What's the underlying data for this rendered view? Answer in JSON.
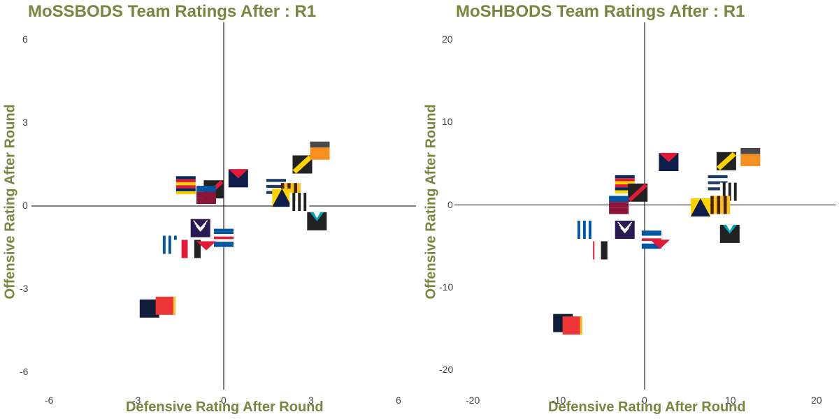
{
  "chart_data": [
    {
      "type": "scatter",
      "title": "MoSSBODS Team Ratings After : R1",
      "xlabel": "Defensive Rating After Round",
      "ylabel": "Offensive Rating After Round",
      "xlim": [
        -6,
        6
      ],
      "ylim": [
        -6,
        6
      ],
      "x_ticks": [
        "-6",
        "-3",
        "0",
        "3",
        "6"
      ],
      "y_ticks": [
        "6",
        "3",
        "0",
        "-3",
        "-6"
      ],
      "points": [
        {
          "team": "Adelaide",
          "x": -1.3,
          "y": 0.75
        },
        {
          "team": "Essendon",
          "x": -0.35,
          "y": 0.6
        },
        {
          "team": "Brisbane",
          "x": -0.6,
          "y": 0.4
        },
        {
          "team": "Melbourne",
          "x": 0.5,
          "y": 1.0
        },
        {
          "team": "Richmond",
          "x": 2.7,
          "y": 1.5
        },
        {
          "team": "GWS",
          "x": 3.3,
          "y": 2.0
        },
        {
          "team": "Geelong",
          "x": 1.8,
          "y": 0.65
        },
        {
          "team": "Hawthorn",
          "x": 2.3,
          "y": 0.5
        },
        {
          "team": "Gold Coast",
          "x": 2.0,
          "y": 0.3
        },
        {
          "team": "Collingwood",
          "x": 2.6,
          "y": 0.15
        },
        {
          "team": "Port Adelaide",
          "x": 3.2,
          "y": -0.55
        },
        {
          "team": "Fremantle",
          "x": -0.8,
          "y": -0.8
        },
        {
          "team": "Western Bulldogs",
          "x": 0.0,
          "y": -1.15
        },
        {
          "team": "North Melbourne",
          "x": -1.85,
          "y": -1.4
        },
        {
          "team": "Sydney",
          "x": -1.45,
          "y": -1.55
        },
        {
          "team": "St Kilda",
          "x": -0.9,
          "y": -1.55
        },
        {
          "team": "West Coast",
          "x": -0.6,
          "y": -1.6
        },
        {
          "team": "Carlton",
          "x": -2.55,
          "y": -3.7
        },
        {
          "team": "Gold Coast Suns",
          "x": -2.0,
          "y": -3.6
        }
      ]
    },
    {
      "type": "scatter",
      "title": "MoSHBODS Team Ratings After : R1",
      "xlabel": "Defensive Rating After Round",
      "ylabel": "Offensive Rating After Round",
      "xlim": [
        -20,
        20
      ],
      "ylim": [
        -20,
        20
      ],
      "x_ticks": [
        "-20",
        "-10",
        "0",
        "10",
        "20"
      ],
      "y_ticks": [
        "20",
        "10",
        "0",
        "-10",
        "-20"
      ],
      "points": [
        {
          "team": "Adelaide",
          "x": -2.3,
          "y": 2.5
        },
        {
          "team": "Essendon",
          "x": -0.8,
          "y": 1.5
        },
        {
          "team": "Brisbane",
          "x": -3.0,
          "y": 0.0
        },
        {
          "team": "Melbourne",
          "x": 2.8,
          "y": 5.2
        },
        {
          "team": "Richmond",
          "x": 9.5,
          "y": 5.3
        },
        {
          "team": "GWS",
          "x": 12.3,
          "y": 5.8
        },
        {
          "team": "Geelong",
          "x": 8.5,
          "y": 2.5
        },
        {
          "team": "Collingwood",
          "x": 9.9,
          "y": 1.6
        },
        {
          "team": "Hawthorn",
          "x": 8.8,
          "y": 0.0
        },
        {
          "team": "Gold Coast",
          "x": 6.5,
          "y": -0.3
        },
        {
          "team": "Port Adelaide",
          "x": 9.9,
          "y": -3.5
        },
        {
          "team": "Fremantle",
          "x": -2.3,
          "y": -3.0
        },
        {
          "team": "Western Bulldogs",
          "x": 0.8,
          "y": -4.2
        },
        {
          "team": "North Melbourne",
          "x": -7.0,
          "y": -3.0
        },
        {
          "team": "Sydney",
          "x": -6.0,
          "y": -5.5
        },
        {
          "team": "St Kilda",
          "x": -4.7,
          "y": -5.5
        },
        {
          "team": "West Coast",
          "x": 1.8,
          "y": -5.3
        },
        {
          "team": "Carlton",
          "x": -9.5,
          "y": -14.3
        },
        {
          "team": "Gold Coast Suns",
          "x": -8.4,
          "y": -14.6
        }
      ]
    }
  ]
}
